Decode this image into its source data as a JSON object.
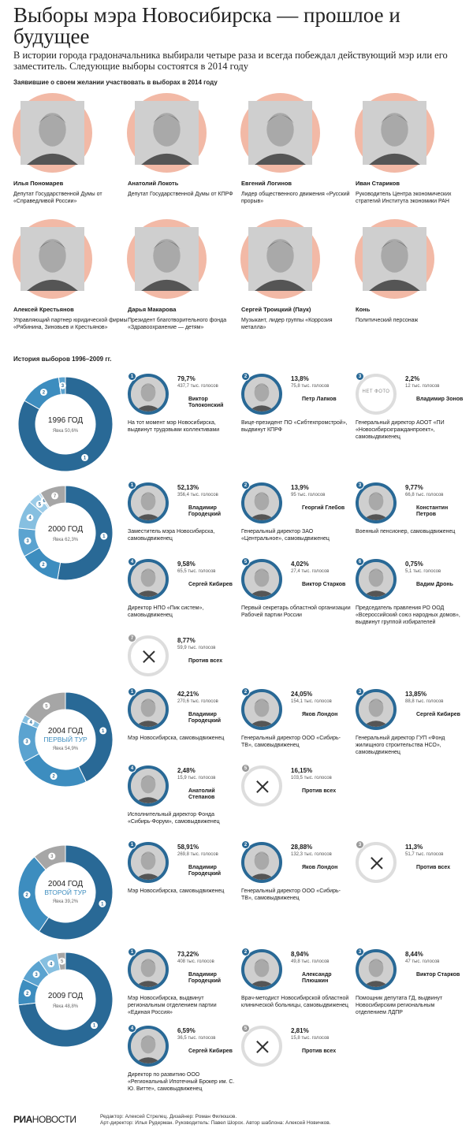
{
  "header": {
    "title": "Выборы мэра Новосибирска — прошлое и будущее",
    "subtitle": "В истории города градоначальника выбирали четыре раза и всегда побеждал действующий мэр или его заместитель. Следующие выборы состоятся в 2014 году"
  },
  "candidates_2014": {
    "heading": "Заявившие о своем желании участвовать в выборах в 2014 году",
    "items": [
      {
        "name": "Илья Пономарев",
        "desc": "Депутат Государственной Думы от «Справедливой России»"
      },
      {
        "name": "Анатолий Локоть",
        "desc": "Депутат Государственной Думы от КПРФ"
      },
      {
        "name": "Евгений Логинов",
        "desc": "Лидер общественного движения «Русский прорыв»"
      },
      {
        "name": "Иван Стариков",
        "desc": "Руководитель Центра экономических стратегий Института экономики РАН"
      },
      {
        "name": "Алексей Крестьянов",
        "desc": "Управляющий партнер юридической фирмы «Рябинина, Зиновьев и Крестьянов»"
      },
      {
        "name": "Дарья Макарова",
        "desc": "Президент благотворительного фонда «Здравоохранение — детям»"
      },
      {
        "name": "Сергей Троицкий (Паук)",
        "desc": "Музыкант, лидер группы «Коррозия металла»"
      },
      {
        "name": "Конь",
        "desc": "Политический персонаж"
      }
    ]
  },
  "history": {
    "heading": "История выборов 1996–2009 гг.",
    "no_photo": "НЕТ ФОТО",
    "elections": [
      {
        "year": "1996 ГОД",
        "tour": "",
        "turnout": "Явка 50,6%",
        "results": [
          {
            "n": "1",
            "pct": "79,7%",
            "votes": "437,7 тыс. голосов",
            "name": "Виктор Толоконский",
            "desc": "На тот момент мэр Новосибирска, выдвинут трудовыми коллективами",
            "share": 79.7,
            "against": false,
            "photo": true
          },
          {
            "n": "2",
            "pct": "13,8%",
            "votes": "75,8 тыс. голосов",
            "name": "Петр Лапков",
            "desc": "Вице-президент ПО «Сибтехпромстрой», выдвинут КПРФ",
            "share": 13.8,
            "against": false,
            "photo": true
          },
          {
            "n": "3",
            "pct": "2,2%",
            "votes": "12 тыс. голосов",
            "name": "Владимир Зонов",
            "desc": "Генеральный директор АООТ «ПИ «Новосибирскграж­данпроект», самовыдвиженец",
            "share": 2.2,
            "against": false,
            "photo": false
          }
        ]
      },
      {
        "year": "2000 ГОД",
        "tour": "",
        "turnout": "Явка 62,3%",
        "results": [
          {
            "n": "1",
            "pct": "52,13%",
            "votes": "356,4 тыс. голосов",
            "name": "Владимир Городецкий",
            "desc": "Заместитель мэра Новосибирска, самовыдвиженец",
            "share": 52.13,
            "against": false,
            "photo": true
          },
          {
            "n": "2",
            "pct": "13,9%",
            "votes": "95 тыс. голосов",
            "name": "Георгий Глебов",
            "desc": "Генеральный директор ЗАО «Центральное», самовыдвиженец",
            "share": 13.9,
            "against": false,
            "photo": true
          },
          {
            "n": "3",
            "pct": "9,77%",
            "votes": "66,8 тыс. голосов",
            "name": "Константин Петров",
            "desc": "Военный пенсионер, самовыдвиженец",
            "share": 9.77,
            "against": false,
            "photo": true
          },
          {
            "n": "4",
            "pct": "9,58%",
            "votes": "65,5 тыс. голосов",
            "name": "Сергей Кибирев",
            "desc": "Директор НПО «Пик систем», самовыдвиженец",
            "share": 9.58,
            "against": false,
            "photo": true
          },
          {
            "n": "5",
            "pct": "4,02%",
            "votes": "27,4 тыс. голосов",
            "name": "Виктор Старков",
            "desc": "Первый секретарь областной организации Рабочей партии России",
            "share": 4.02,
            "against": false,
            "photo": true
          },
          {
            "n": "6",
            "pct": "0,75%",
            "votes": "5,1 тыс. голосов",
            "name": "Вадим Дронь",
            "desc": "Председатель правления РО ООД «Всероссийский союз народных домов», выдвинут группой избирателей",
            "share": 0.75,
            "against": false,
            "photo": true
          },
          {
            "n": "7",
            "pct": "8,77%",
            "votes": "59,9 тыс. голосов",
            "name": "Против всех",
            "desc": "",
            "share": 8.77,
            "against": true,
            "photo": false
          }
        ]
      },
      {
        "year": "2004 ГОД",
        "tour": "ПЕРВЫЙ ТУР",
        "turnout": "Явка 54,9%",
        "results": [
          {
            "n": "1",
            "pct": "42,21%",
            "votes": "270,6 тыс. голосов",
            "name": "Владимир Городецкий",
            "desc": "Мэр Новосибирска, самовыдвиженец",
            "share": 42.21,
            "against": false,
            "photo": true
          },
          {
            "n": "2",
            "pct": "24,05%",
            "votes": "154,1 тыс. голосов",
            "name": "Яков Лондон",
            "desc": "Генеральный директор ООО «Сибирь-ТВ», самовыдвиженец",
            "share": 24.05,
            "against": false,
            "photo": true
          },
          {
            "n": "3",
            "pct": "13,85%",
            "votes": "88,8 тыс. голосов",
            "name": "Сергей Кибирев",
            "desc": "Генеральный директор ГУП «Фонд жилищного строительства НСО», самовыдвиженец",
            "share": 13.85,
            "against": false,
            "photo": true
          },
          {
            "n": "4",
            "pct": "2,48%",
            "votes": "15,9 тыс. голосов",
            "name": "Анатолий Степанов",
            "desc": "Исполнительный директор Фонда «Сибирь-Форум», самовыдвиженец",
            "share": 2.48,
            "against": false,
            "photo": true
          },
          {
            "n": "5",
            "pct": "16,15%",
            "votes": "103,5 тыс. голосов",
            "name": "Против всех",
            "desc": "",
            "share": 16.15,
            "against": true,
            "photo": false
          }
        ]
      },
      {
        "year": "2004 ГОД",
        "tour": "ВТОРОЙ ТУР",
        "turnout": "Явка 39,2%",
        "results": [
          {
            "n": "1",
            "pct": "58,91%",
            "votes": "269,8 тыс. голосов",
            "name": "Владимир Городецкий",
            "desc": "Мэр Новосибирска, самовыдвиженец",
            "share": 58.91,
            "against": false,
            "photo": true
          },
          {
            "n": "2",
            "pct": "28,88%",
            "votes": "132,3 тыс. голосов",
            "name": "Яков Лондон",
            "desc": "Генеральный директор ООО «Сибирь-ТВ», самовыдвиженец",
            "share": 28.88,
            "against": false,
            "photo": true
          },
          {
            "n": "3",
            "pct": "11,3%",
            "votes": "51,7 тыс. голосов",
            "name": "Против всех",
            "desc": "",
            "share": 11.3,
            "against": true,
            "photo": false
          }
        ]
      },
      {
        "year": "2009 ГОД",
        "tour": "",
        "turnout": "Явка 48,8%",
        "results": [
          {
            "n": "1",
            "pct": "73,22%",
            "votes": "408 тыс. голосов",
            "name": "Владимир Городецкий",
            "desc": "Мэр Новосибирска, выдвинут региональным отделением партии «Единая Россия»",
            "share": 73.22,
            "against": false,
            "photo": true
          },
          {
            "n": "2",
            "pct": "8,94%",
            "votes": "49,8 тыс. голосов",
            "name": "Александр Плюшкин",
            "desc": "Врач-методист Новосибирской областной клинической больницы, самовыдвиженец",
            "share": 8.94,
            "against": false,
            "photo": true
          },
          {
            "n": "3",
            "pct": "8,44%",
            "votes": "47 тыс. голосов",
            "name": "Виктор Старков",
            "desc": "Помощник депутата ГД, выдвинут Новосибирским региональным отделением ЛДПР",
            "share": 8.44,
            "against": false,
            "photo": true
          },
          {
            "n": "4",
            "pct": "6,59%",
            "votes": "36,5 тыс. голосов",
            "name": "Сергей Кибирев",
            "desc": "Директор по развитию ООО «Региональный Ипотечный Брокер им. С. Ю. Витте», самовыдвиженец",
            "share": 6.59,
            "against": false,
            "photo": true
          },
          {
            "n": "5",
            "pct": "2,81%",
            "votes": "15,8 тыс. голосов",
            "name": "Против всех",
            "desc": "",
            "share": 2.81,
            "against": true,
            "photo": false
          }
        ]
      }
    ]
  },
  "chart_data": [
    {
      "type": "pie",
      "title": "1996 ГОД",
      "categories": [
        "Виктор Толоконский",
        "Петр Лапков",
        "Владимир Зонов"
      ],
      "values": [
        79.7,
        13.8,
        2.2
      ]
    },
    {
      "type": "pie",
      "title": "2000 ГОД",
      "categories": [
        "Владимир Городецкий",
        "Георгий Глебов",
        "Константин Петров",
        "Сергей Кибирев",
        "Виктор Старков",
        "Вадим Дронь",
        "Против всех"
      ],
      "values": [
        52.13,
        13.9,
        9.77,
        9.58,
        4.02,
        0.75,
        8.77
      ]
    },
    {
      "type": "pie",
      "title": "2004 ГОД ПЕРВЫЙ ТУР",
      "categories": [
        "Владимир Городецкий",
        "Яков Лондон",
        "Сергей Кибирев",
        "Анатолий Степанов",
        "Против всех"
      ],
      "values": [
        42.21,
        24.05,
        13.85,
        2.48,
        16.15
      ]
    },
    {
      "type": "pie",
      "title": "2004 ГОД ВТОРОЙ ТУР",
      "categories": [
        "Владимир Городецкий",
        "Яков Лондон",
        "Против всех"
      ],
      "values": [
        58.91,
        28.88,
        11.3
      ]
    },
    {
      "type": "pie",
      "title": "2009 ГОД",
      "categories": [
        "Владимир Городецкий",
        "Александр Плюшкин",
        "Виктор Старков",
        "Сергей Кибирев",
        "Против всех"
      ],
      "values": [
        73.22,
        8.94,
        8.44,
        6.59,
        2.81
      ]
    }
  ],
  "footer": {
    "logo_bold": "РИА",
    "logo_light": "НОВОСТИ",
    "credits_1": "Редактор: Алексей Стрелец. Дизайнер: Роман Филюшов.",
    "credits_2": "Арт-директор: Илья Рудерман. Руководитель: Павел Шорох. Автор шаблона: Алексей Новичков."
  },
  "colors": {
    "blue_dark": "#296996",
    "blue_mid": "#3d8dbf",
    "blue_light": "#86bfe0",
    "blue_pale": "#b9dbf0",
    "gray": "#a6a6a6",
    "ring": "#f2b9a6"
  }
}
